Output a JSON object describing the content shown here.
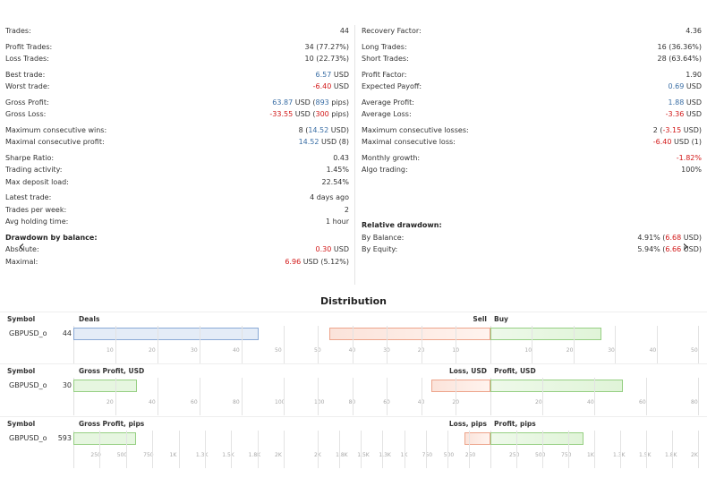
{
  "left_stats": [
    {
      "label": "Trades:",
      "value": "44"
    },
    {
      "gap": true
    },
    {
      "label": "Profit Trades:",
      "value": "34 (77.27%)"
    },
    {
      "label": "Loss Trades:",
      "value": "10 (22.73%)"
    },
    {
      "gap": true
    },
    {
      "label": "Best trade:",
      "value": "6.57",
      "value_color": "blue",
      "suffix": " USD"
    },
    {
      "label": "Worst trade:",
      "value": "-6.40",
      "value_color": "red",
      "suffix": " USD"
    },
    {
      "gap": true
    },
    {
      "label": "Gross Profit:",
      "parts": [
        {
          "t": "63.87",
          "c": "blue"
        },
        {
          "t": " USD ("
        },
        {
          "t": "893",
          "c": "blue"
        },
        {
          "t": " pips)"
        }
      ]
    },
    {
      "label": "Gross Loss:",
      "parts": [
        {
          "t": "-33.55",
          "c": "red"
        },
        {
          "t": " USD ("
        },
        {
          "t": "300",
          "c": "red"
        },
        {
          "t": " pips)"
        }
      ]
    },
    {
      "gap": true
    },
    {
      "label": "Maximum consecutive wins:",
      "parts": [
        {
          "t": "8 ("
        },
        {
          "t": "14.52",
          "c": "blue"
        },
        {
          "t": " USD)"
        }
      ]
    },
    {
      "label": "Maximal consecutive profit:",
      "parts": [
        {
          "t": "14.52",
          "c": "blue"
        },
        {
          "t": " USD (8)"
        }
      ]
    },
    {
      "gap": true
    },
    {
      "label": "Sharpe Ratio:",
      "value": "0.43"
    },
    {
      "label": "Trading activity:",
      "value": "1.45%"
    },
    {
      "label": "Max deposit load:",
      "value": "22.54%"
    },
    {
      "gap": true
    },
    {
      "label": "Latest trade:",
      "value": "4 days ago"
    },
    {
      "label": "Trades per week:",
      "value": "2"
    },
    {
      "label": "Avg holding time:",
      "value": "1 hour"
    },
    {
      "gap": true
    },
    {
      "label": "Drawdown by balance:",
      "bold": true
    },
    {
      "label": "Absolute:",
      "value": "0.30",
      "value_color": "red",
      "suffix": " USD"
    },
    {
      "label": "Maximal:",
      "parts": [
        {
          "t": "6.96",
          "c": "red"
        },
        {
          "t": " USD (5.12%)"
        }
      ]
    }
  ],
  "right_stats": [
    {
      "label": "Recovery Factor:",
      "value": "4.36"
    },
    {
      "gap": true
    },
    {
      "label": "Long Trades:",
      "value": "16 (36.36%)"
    },
    {
      "label": "Short Trades:",
      "value": "28 (63.64%)"
    },
    {
      "gap": true
    },
    {
      "label": "Profit Factor:",
      "value": "1.90"
    },
    {
      "label": "Expected Payoff:",
      "value": "0.69",
      "value_color": "blue",
      "suffix": " USD"
    },
    {
      "gap": true
    },
    {
      "label": "Average Profit:",
      "value": "1.88",
      "value_color": "blue",
      "suffix": " USD"
    },
    {
      "label": "Average Loss:",
      "value": "-3.36",
      "value_color": "red",
      "suffix": " USD"
    },
    {
      "gap": true
    },
    {
      "label": "Maximum consecutive losses:",
      "parts": [
        {
          "t": "2 ("
        },
        {
          "t": "-3.15",
          "c": "red"
        },
        {
          "t": " USD)"
        }
      ]
    },
    {
      "label": "Maximal consecutive loss:",
      "parts": [
        {
          "t": "-6.40",
          "c": "red"
        },
        {
          "t": " USD (1)"
        }
      ]
    },
    {
      "gap": true
    },
    {
      "label": "Monthly growth:",
      "value": "-1.82%",
      "value_color": "red"
    },
    {
      "label": "Algo trading:",
      "value": "100%"
    },
    {
      "gap": true
    },
    {
      "label": "",
      "value": ""
    },
    {
      "label": "",
      "value": ""
    },
    {
      "label": "",
      "value": ""
    },
    {
      "gap": true
    },
    {
      "label": "Relative drawdown:",
      "bold": true
    },
    {
      "label": "By Balance:",
      "parts": [
        {
          "t": "4.91% ("
        },
        {
          "t": "6.68",
          "c": "red"
        },
        {
          "t": " USD)"
        }
      ]
    },
    {
      "label": "By Equity:",
      "parts": [
        {
          "t": "5.94% ("
        },
        {
          "t": "6.66",
          "c": "red"
        },
        {
          "t": " USD)"
        }
      ]
    }
  ],
  "nav": {
    "prev_icon": "chevron-left-icon",
    "next_icon": "chevron-right-icon",
    "prev_glyph": "‹",
    "next_glyph": "›"
  },
  "distribution": {
    "title": "Distribution",
    "sections": [
      {
        "symbol_header": "Symbol",
        "left_header": "Deals",
        "right_left_header": "Sell",
        "right_right_header": "Buy",
        "symbol": "GBPUSD_o",
        "count": "44",
        "left_value": 44,
        "left_max": 50,
        "left_ticks": [
          "10",
          "20",
          "30",
          "40",
          "50"
        ],
        "right_neg_value": 28,
        "right_pos_value": 16,
        "right_max": 30,
        "right_ticks_neg": [
          "50",
          "40",
          "30",
          "20",
          "10"
        ],
        "right_ticks_pos": [
          "10",
          "20",
          "30",
          "40",
          "50"
        ],
        "style": "deals"
      },
      {
        "symbol_header": "Symbol",
        "left_header": "Gross Profit, USD",
        "right_left_header": "Loss, USD",
        "right_right_header": "Profit, USD",
        "symbol": "GBPUSD_o",
        "count": "30",
        "left_value": 30,
        "left_max": 100,
        "left_ticks": [
          "20",
          "40",
          "60",
          "80",
          "100"
        ],
        "right_neg_value": 34,
        "right_pos_value": 64,
        "right_max": 100,
        "right_ticks_neg": [
          "100",
          "80",
          "60",
          "40",
          "20"
        ],
        "right_ticks_pos": [
          "20",
          "40",
          "60",
          "80"
        ],
        "style": "usd"
      },
      {
        "symbol_header": "Symbol",
        "left_header": "Gross Profit, pips",
        "right_left_header": "Loss, pips",
        "right_right_header": "Profit, pips",
        "symbol": "GBPUSD_o",
        "count": "593",
        "left_value": 593,
        "left_max": 2000,
        "left_ticks": [
          "250",
          "500",
          "750",
          "1K",
          "1.3K",
          "1.5K",
          "1.8K",
          "2K"
        ],
        "right_neg_value": 300,
        "right_pos_value": 893,
        "right_max": 2000,
        "right_ticks_neg": [
          "2K",
          "1.8K",
          "1.5K",
          "1.3K",
          "1K",
          "750",
          "500",
          "250"
        ],
        "right_ticks_pos": [
          "250",
          "500",
          "750",
          "1K",
          "1.3K",
          "1.5K",
          "1.8K",
          "2K"
        ],
        "style": "pips"
      }
    ]
  }
}
